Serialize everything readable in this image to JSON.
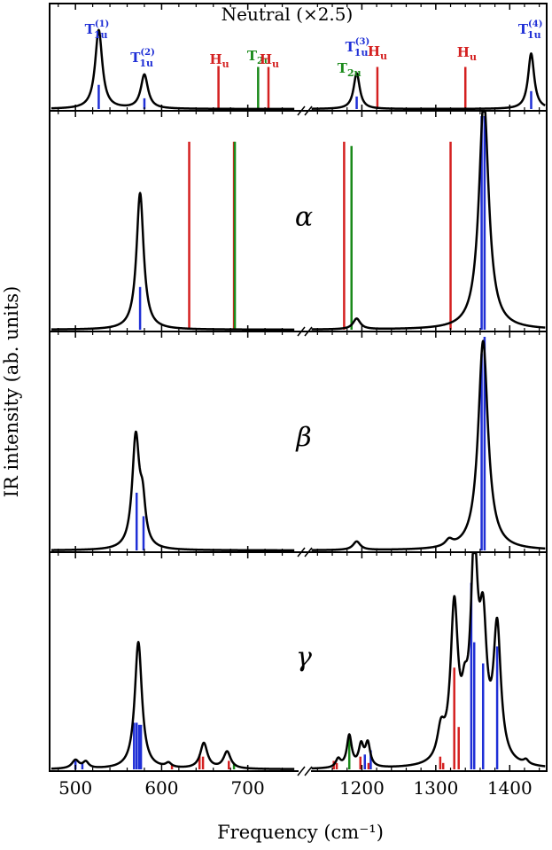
{
  "chart_data": {
    "type": "line",
    "xlabel": "Frequency (cm⁻¹)",
    "ylabel": "IR intensity (ab. units)",
    "x_ticks": [
      "500",
      "600",
      "700",
      "1200",
      "1300",
      "1400"
    ],
    "x_segments": [
      {
        "range": [
          470,
          760
        ]
      },
      {
        "range": [
          1130,
          1450
        ]
      }
    ],
    "axis_break": "//",
    "colors": {
      "T1u": "#1f2fd6",
      "T2u": "#1a8a1a",
      "Hu": "#d42020",
      "spectrum": "#000000"
    },
    "panels": [
      {
        "id": "neutral",
        "title": "Neutral (×2.5)",
        "ymax": 1.0,
        "peak_labels": [
          {
            "base": "T",
            "sub": "1u",
            "sup": "(1)",
            "mode": "T1u",
            "x": 525
          },
          {
            "base": "T",
            "sub": "1u",
            "sup": "(2)",
            "mode": "T1u",
            "x": 578
          },
          {
            "base": "H",
            "sub": "u",
            "sup": "",
            "mode": "Hu",
            "x": 667
          },
          {
            "base": "T",
            "sub": "2u",
            "sup": "",
            "mode": "T2u",
            "x": 713
          },
          {
            "base": "H",
            "sub": "u",
            "sup": "",
            "mode": "Hu",
            "x": 725
          },
          {
            "base": "T",
            "sub": "2u",
            "sup": "",
            "mode": "T2u",
            "x": 1183
          },
          {
            "base": "T",
            "sub": "1u",
            "sup": "(3)",
            "mode": "T1u",
            "x": 1194
          },
          {
            "base": "H",
            "sub": "u",
            "sup": "",
            "mode": "Hu",
            "x": 1221
          },
          {
            "base": "H",
            "sub": "u",
            "sup": "",
            "mode": "Hu",
            "x": 1342
          },
          {
            "base": "T",
            "sub": "1u",
            "sup": "(4)",
            "mode": "T1u",
            "x": 1428
          }
        ],
        "peaks": [
          {
            "x": 527,
            "h": 0.88,
            "w": 5
          },
          {
            "x": 580,
            "h": 0.38,
            "w": 5
          },
          {
            "x": 1193,
            "h": 0.4,
            "w": 5
          },
          {
            "x": 1429,
            "h": 0.62,
            "w": 5
          }
        ],
        "sticks": [
          {
            "x": 527,
            "h": 0.27,
            "mode": "T1u"
          },
          {
            "x": 580,
            "h": 0.12,
            "mode": "T1u"
          },
          {
            "x": 666,
            "h": 0.48,
            "mode": "Hu"
          },
          {
            "x": 712,
            "h": 0.47,
            "mode": "T2u"
          },
          {
            "x": 724,
            "h": 0.47,
            "mode": "Hu"
          },
          {
            "x": 1193,
            "h": 0.14,
            "mode": "T1u"
          },
          {
            "x": 1221,
            "h": 0.47,
            "mode": "Hu"
          },
          {
            "x": 1340,
            "h": 0.47,
            "mode": "Hu"
          },
          {
            "x": 1429,
            "h": 0.2,
            "mode": "T1u"
          }
        ]
      },
      {
        "id": "alpha",
        "title": "α",
        "ymax": 1.0,
        "peaks": [
          {
            "x": 575,
            "h": 0.64,
            "w": 5
          },
          {
            "x": 1193,
            "h": 0.05,
            "w": 6
          },
          {
            "x": 1365,
            "h": 1.08,
            "w": 8
          }
        ],
        "sticks": [
          {
            "x": 575,
            "h": 0.2,
            "mode": "T1u"
          },
          {
            "x": 632,
            "h": 0.88,
            "mode": "Hu"
          },
          {
            "x": 684,
            "h": 0.88,
            "mode": "Hu"
          },
          {
            "x": 685,
            "h": 0.88,
            "mode": "T2u"
          },
          {
            "x": 1176,
            "h": 0.88,
            "mode": "Hu"
          },
          {
            "x": 1186,
            "h": 0.86,
            "mode": "T2u"
          },
          {
            "x": 1320,
            "h": 0.88,
            "mode": "Hu"
          },
          {
            "x": 1362,
            "h": 1.0,
            "mode": "T1u"
          },
          {
            "x": 1366,
            "h": 1.0,
            "mode": "T1u"
          }
        ]
      },
      {
        "id": "beta",
        "title": "β",
        "ymax": 1.0,
        "peaks": [
          {
            "x": 570,
            "h": 0.52,
            "w": 5
          },
          {
            "x": 578,
            "h": 0.18,
            "w": 4
          },
          {
            "x": 1193,
            "h": 0.04,
            "w": 6
          },
          {
            "x": 1318,
            "h": 0.03,
            "w": 6
          },
          {
            "x": 1364,
            "h": 0.98,
            "w": 8
          }
        ],
        "sticks": [
          {
            "x": 571,
            "h": 0.27,
            "mode": "T1u"
          },
          {
            "x": 579,
            "h": 0.16,
            "mode": "T1u"
          },
          {
            "x": 1362,
            "h": 0.92,
            "mode": "T1u"
          },
          {
            "x": 1366,
            "h": 1.0,
            "mode": "T1u"
          }
        ]
      },
      {
        "id": "gamma",
        "title": "γ",
        "ymax": 1.0,
        "peaks": [
          {
            "x": 500,
            "h": 0.04,
            "w": 5
          },
          {
            "x": 512,
            "h": 0.03,
            "w": 4
          },
          {
            "x": 573,
            "h": 0.6,
            "w": 5
          },
          {
            "x": 608,
            "h": 0.02,
            "w": 4
          },
          {
            "x": 649,
            "h": 0.12,
            "w": 5
          },
          {
            "x": 676,
            "h": 0.08,
            "w": 5
          },
          {
            "x": 1168,
            "h": 0.04,
            "w": 4
          },
          {
            "x": 1183,
            "h": 0.15,
            "w": 4
          },
          {
            "x": 1199,
            "h": 0.1,
            "w": 4
          },
          {
            "x": 1208,
            "h": 0.11,
            "w": 4
          },
          {
            "x": 1307,
            "h": 0.14,
            "w": 6
          },
          {
            "x": 1325,
            "h": 0.72,
            "w": 6
          },
          {
            "x": 1339,
            "h": 0.18,
            "w": 5
          },
          {
            "x": 1352,
            "h": 0.93,
            "w": 6
          },
          {
            "x": 1364,
            "h": 0.56,
            "w": 6
          },
          {
            "x": 1383,
            "h": 0.62,
            "w": 6
          },
          {
            "x": 1422,
            "h": 0.02,
            "w": 4
          }
        ],
        "sticks": [
          {
            "x": 500,
            "h": 0.04,
            "mode": "T1u"
          },
          {
            "x": 508,
            "h": 0.03,
            "mode": "T1u"
          },
          {
            "x": 568,
            "h": 0.22,
            "mode": "T1u"
          },
          {
            "x": 571,
            "h": 0.22,
            "mode": "T1u"
          },
          {
            "x": 574,
            "h": 0.21,
            "mode": "T1u"
          },
          {
            "x": 576,
            "h": 0.21,
            "mode": "T1u"
          },
          {
            "x": 612,
            "h": 0.02,
            "mode": "Hu"
          },
          {
            "x": 644,
            "h": 0.07,
            "mode": "Hu"
          },
          {
            "x": 648,
            "h": 0.06,
            "mode": "Hu"
          },
          {
            "x": 678,
            "h": 0.04,
            "mode": "Hu"
          },
          {
            "x": 684,
            "h": 0.03,
            "mode": "T2u"
          },
          {
            "x": 1162,
            "h": 0.04,
            "mode": "Hu"
          },
          {
            "x": 1166,
            "h": 0.03,
            "mode": "Hu"
          },
          {
            "x": 1183,
            "h": 0.15,
            "mode": "T2u"
          },
          {
            "x": 1198,
            "h": 0.06,
            "mode": "Hu"
          },
          {
            "x": 1204,
            "h": 0.07,
            "mode": "T1u"
          },
          {
            "x": 1209,
            "h": 0.03,
            "mode": "Hu"
          },
          {
            "x": 1212,
            "h": 0.09,
            "mode": "T1u"
          },
          {
            "x": 1306,
            "h": 0.06,
            "mode": "Hu"
          },
          {
            "x": 1310,
            "h": 0.03,
            "mode": "Hu"
          },
          {
            "x": 1325,
            "h": 0.48,
            "mode": "Hu"
          },
          {
            "x": 1331,
            "h": 0.2,
            "mode": "Hu"
          },
          {
            "x": 1348,
            "h": 0.88,
            "mode": "T1u"
          },
          {
            "x": 1352,
            "h": 0.6,
            "mode": "T1u"
          },
          {
            "x": 1364,
            "h": 0.5,
            "mode": "T1u"
          },
          {
            "x": 1383,
            "h": 0.58,
            "mode": "T1u"
          }
        ]
      }
    ]
  }
}
